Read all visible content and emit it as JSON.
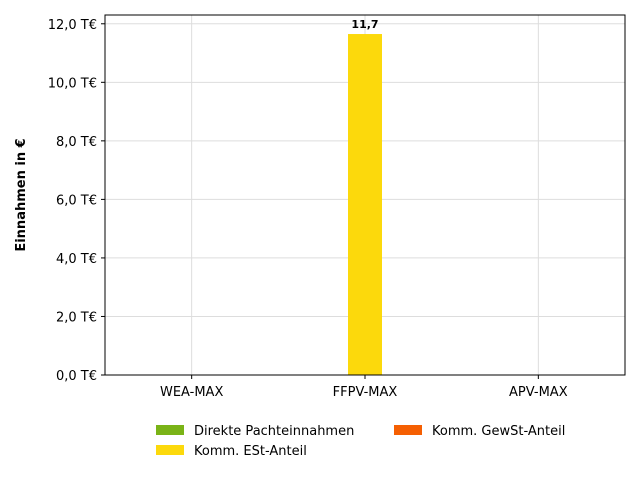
{
  "chart_data": {
    "type": "bar",
    "categories": [
      "WEA-MAX",
      "FFPV-MAX",
      "APV-MAX"
    ],
    "series": [
      {
        "name": "Direkte Pachteinnahmen",
        "color": "#7ab317",
        "values": [
          0,
          0,
          0
        ]
      },
      {
        "name": "Komm. ESt-Anteil",
        "color": "#fcd90c",
        "values": [
          0,
          11.65,
          0
        ],
        "data_labels": [
          "",
          "11,7",
          ""
        ]
      },
      {
        "name": "Komm. GewSt-Anteil",
        "color": "#f55f02",
        "values": [
          0,
          0,
          0
        ]
      }
    ],
    "ylabel": "Einnahmen in €",
    "ylim": [
      0,
      12.3
    ],
    "yticks": [
      {
        "value": 0,
        "label": "0,0 T€"
      },
      {
        "value": 2,
        "label": "2,0 T€"
      },
      {
        "value": 4,
        "label": "4,0 T€"
      },
      {
        "value": 6,
        "label": "6,0 T€"
      },
      {
        "value": 8,
        "label": "8,0 T€"
      },
      {
        "value": 10,
        "label": "10,0 T€"
      },
      {
        "value": 12,
        "label": "12,0 T€"
      }
    ],
    "grid": true,
    "legend_position": "bottom"
  }
}
